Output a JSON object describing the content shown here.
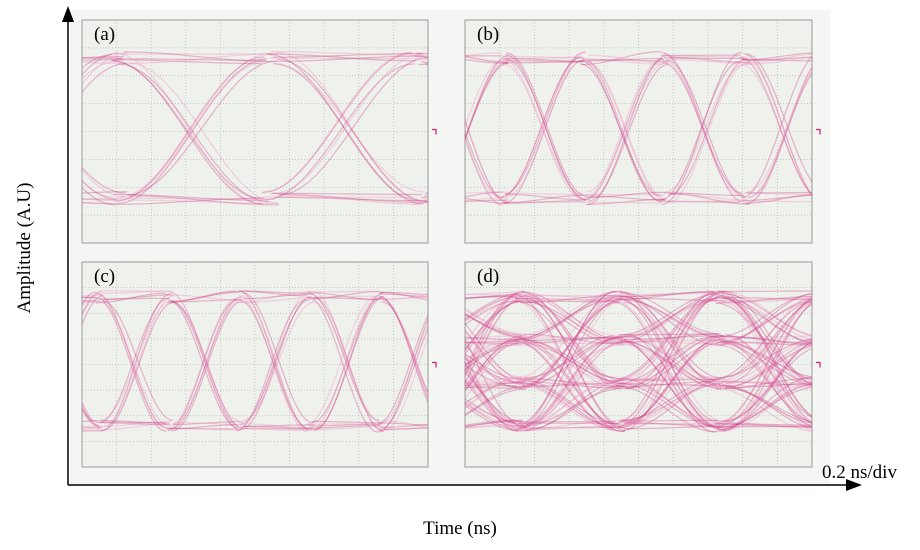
{
  "panels": [
    {
      "label": "(a)"
    },
    {
      "label": "(b)"
    },
    {
      "label": "(c)"
    },
    {
      "label": "(d)"
    }
  ],
  "y_axis_label": "Amplitude (A.U)",
  "x_axis_label": "Time (ns)",
  "scale_label": "0.2 ns/div"
}
